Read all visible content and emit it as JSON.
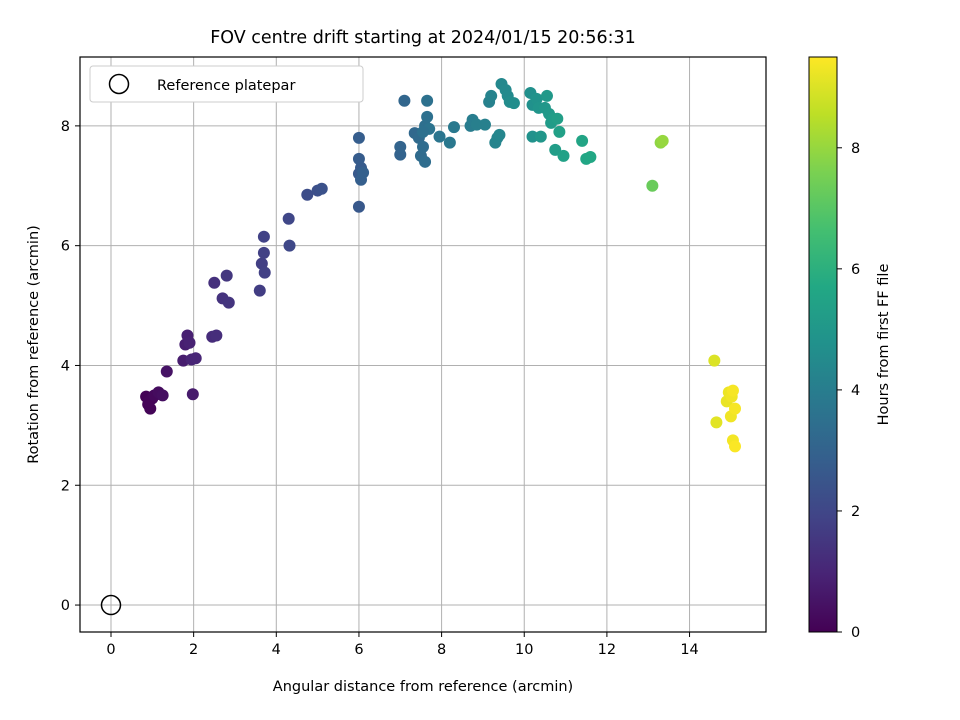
{
  "chart_data": {
    "type": "scatter",
    "title": "FOV centre drift starting at 2024/01/15 20:56:31",
    "xlabel": "Angular distance from reference (arcmin)",
    "ylabel": "Rotation from reference (arcmin)",
    "xlim": [
      -0.75,
      15.85
    ],
    "ylim": [
      -0.45,
      9.15
    ],
    "xticks": [
      0,
      2,
      4,
      6,
      8,
      10,
      12,
      14
    ],
    "yticks": [
      0,
      2,
      4,
      6,
      8
    ],
    "grid": true,
    "legend": {
      "location": "top-left",
      "entries": [
        "Reference platepar"
      ]
    },
    "reference_point": {
      "name": "Reference platepar",
      "x": 0,
      "y": 0,
      "marker": "open-circle"
    },
    "colorbar": {
      "label": "Hours from first FF file",
      "colormap": "viridis",
      "range": [
        0,
        9.5
      ],
      "ticks": [
        0,
        2,
        4,
        6,
        8
      ]
    },
    "series": [
      {
        "points": [
          {
            "x": 0.85,
            "y": 3.48,
            "h": 0.05
          },
          {
            "x": 0.9,
            "y": 3.35,
            "h": 0.08
          },
          {
            "x": 0.95,
            "y": 3.28,
            "h": 0.1
          },
          {
            "x": 1.0,
            "y": 3.45,
            "h": 0.15
          },
          {
            "x": 0.92,
            "y": 3.4,
            "h": 0.12
          },
          {
            "x": 1.05,
            "y": 3.5,
            "h": 0.2
          },
          {
            "x": 1.15,
            "y": 3.55,
            "h": 0.3
          },
          {
            "x": 1.25,
            "y": 3.5,
            "h": 0.35
          },
          {
            "x": 1.35,
            "y": 3.9,
            "h": 0.5
          },
          {
            "x": 1.75,
            "y": 4.08,
            "h": 0.75
          },
          {
            "x": 1.8,
            "y": 4.35,
            "h": 0.8
          },
          {
            "x": 1.85,
            "y": 4.5,
            "h": 0.85
          },
          {
            "x": 1.9,
            "y": 4.38,
            "h": 0.9
          },
          {
            "x": 1.95,
            "y": 4.1,
            "h": 0.95
          },
          {
            "x": 2.05,
            "y": 4.12,
            "h": 1.0
          },
          {
            "x": 1.98,
            "y": 3.52,
            "h": 0.7
          },
          {
            "x": 2.45,
            "y": 4.48,
            "h": 1.2
          },
          {
            "x": 2.55,
            "y": 4.5,
            "h": 1.25
          },
          {
            "x": 2.5,
            "y": 5.38,
            "h": 1.3
          },
          {
            "x": 2.7,
            "y": 5.12,
            "h": 1.4
          },
          {
            "x": 2.85,
            "y": 5.05,
            "h": 1.45
          },
          {
            "x": 2.8,
            "y": 5.5,
            "h": 1.5
          },
          {
            "x": 3.6,
            "y": 5.25,
            "h": 1.7
          },
          {
            "x": 3.65,
            "y": 5.7,
            "h": 1.75
          },
          {
            "x": 3.7,
            "y": 5.88,
            "h": 1.8
          },
          {
            "x": 3.7,
            "y": 6.15,
            "h": 1.85
          },
          {
            "x": 3.72,
            "y": 5.55,
            "h": 1.8
          },
          {
            "x": 4.3,
            "y": 6.45,
            "h": 2.0
          },
          {
            "x": 4.32,
            "y": 6.0,
            "h": 2.05
          },
          {
            "x": 4.75,
            "y": 6.85,
            "h": 2.2
          },
          {
            "x": 5.0,
            "y": 6.92,
            "h": 2.3
          },
          {
            "x": 5.1,
            "y": 6.95,
            "h": 2.35
          },
          {
            "x": 6.0,
            "y": 6.65,
            "h": 2.6
          },
          {
            "x": 6.0,
            "y": 7.2,
            "h": 2.65
          },
          {
            "x": 6.05,
            "y": 7.3,
            "h": 2.7
          },
          {
            "x": 6.0,
            "y": 7.45,
            "h": 2.75
          },
          {
            "x": 6.0,
            "y": 7.8,
            "h": 2.8
          },
          {
            "x": 6.05,
            "y": 7.1,
            "h": 2.85
          },
          {
            "x": 6.1,
            "y": 7.22,
            "h": 2.9
          },
          {
            "x": 7.0,
            "y": 7.52,
            "h": 3.0
          },
          {
            "x": 7.0,
            "y": 7.65,
            "h": 3.05
          },
          {
            "x": 7.1,
            "y": 8.42,
            "h": 3.1
          },
          {
            "x": 7.35,
            "y": 7.88,
            "h": 3.2
          },
          {
            "x": 7.45,
            "y": 7.8,
            "h": 3.25
          },
          {
            "x": 7.5,
            "y": 7.5,
            "h": 3.3
          },
          {
            "x": 7.55,
            "y": 7.65,
            "h": 3.35
          },
          {
            "x": 7.6,
            "y": 7.4,
            "h": 3.4
          },
          {
            "x": 7.6,
            "y": 8.0,
            "h": 3.45
          },
          {
            "x": 7.65,
            "y": 8.15,
            "h": 3.5
          },
          {
            "x": 7.65,
            "y": 8.42,
            "h": 3.55
          },
          {
            "x": 7.7,
            "y": 7.95,
            "h": 3.6
          },
          {
            "x": 7.55,
            "y": 7.9,
            "h": 3.5
          },
          {
            "x": 7.95,
            "y": 7.82,
            "h": 3.7
          },
          {
            "x": 8.2,
            "y": 7.72,
            "h": 3.8
          },
          {
            "x": 8.3,
            "y": 7.98,
            "h": 3.85
          },
          {
            "x": 8.7,
            "y": 8.0,
            "h": 3.95
          },
          {
            "x": 8.75,
            "y": 8.1,
            "h": 4.0
          },
          {
            "x": 8.85,
            "y": 8.02,
            "h": 4.05
          },
          {
            "x": 9.05,
            "y": 8.02,
            "h": 4.1
          },
          {
            "x": 9.15,
            "y": 8.4,
            "h": 4.15
          },
          {
            "x": 9.2,
            "y": 8.5,
            "h": 4.2
          },
          {
            "x": 9.3,
            "y": 7.72,
            "h": 4.25
          },
          {
            "x": 9.35,
            "y": 7.8,
            "h": 4.3
          },
          {
            "x": 9.4,
            "y": 7.85,
            "h": 4.35
          },
          {
            "x": 9.45,
            "y": 8.7,
            "h": 4.4
          },
          {
            "x": 9.55,
            "y": 8.6,
            "h": 4.45
          },
          {
            "x": 9.6,
            "y": 8.5,
            "h": 4.5
          },
          {
            "x": 9.65,
            "y": 8.4,
            "h": 4.55
          },
          {
            "x": 9.75,
            "y": 8.38,
            "h": 4.6
          },
          {
            "x": 10.15,
            "y": 8.55,
            "h": 4.7
          },
          {
            "x": 10.2,
            "y": 8.35,
            "h": 4.75
          },
          {
            "x": 10.2,
            "y": 7.82,
            "h": 4.8
          },
          {
            "x": 10.3,
            "y": 8.45,
            "h": 4.85
          },
          {
            "x": 10.35,
            "y": 8.3,
            "h": 4.9
          },
          {
            "x": 10.4,
            "y": 7.82,
            "h": 4.95
          },
          {
            "x": 10.5,
            "y": 8.3,
            "h": 5.0
          },
          {
            "x": 10.55,
            "y": 8.5,
            "h": 5.05
          },
          {
            "x": 10.6,
            "y": 8.2,
            "h": 5.1
          },
          {
            "x": 10.65,
            "y": 8.05,
            "h": 5.15
          },
          {
            "x": 10.7,
            "y": 8.12,
            "h": 5.2
          },
          {
            "x": 10.75,
            "y": 7.6,
            "h": 5.25
          },
          {
            "x": 10.8,
            "y": 8.12,
            "h": 5.3
          },
          {
            "x": 10.85,
            "y": 7.9,
            "h": 5.35
          },
          {
            "x": 10.95,
            "y": 7.5,
            "h": 5.4
          },
          {
            "x": 11.4,
            "y": 7.75,
            "h": 5.55
          },
          {
            "x": 11.5,
            "y": 7.45,
            "h": 5.6
          },
          {
            "x": 11.6,
            "y": 7.48,
            "h": 5.65
          },
          {
            "x": 13.1,
            "y": 7.0,
            "h": 7.3
          },
          {
            "x": 13.3,
            "y": 7.72,
            "h": 7.9
          },
          {
            "x": 13.35,
            "y": 7.75,
            "h": 8.0
          },
          {
            "x": 14.6,
            "y": 4.08,
            "h": 9.0
          },
          {
            "x": 14.65,
            "y": 3.05,
            "h": 9.1
          },
          {
            "x": 14.9,
            "y": 3.4,
            "h": 9.2
          },
          {
            "x": 14.95,
            "y": 3.55,
            "h": 9.25
          },
          {
            "x": 15.0,
            "y": 3.15,
            "h": 9.3
          },
          {
            "x": 15.02,
            "y": 3.48,
            "h": 9.3
          },
          {
            "x": 15.05,
            "y": 2.75,
            "h": 9.35
          },
          {
            "x": 15.1,
            "y": 3.28,
            "h": 9.4
          },
          {
            "x": 15.1,
            "y": 2.65,
            "h": 9.45
          },
          {
            "x": 15.05,
            "y": 3.58,
            "h": 9.4
          }
        ]
      }
    ]
  }
}
